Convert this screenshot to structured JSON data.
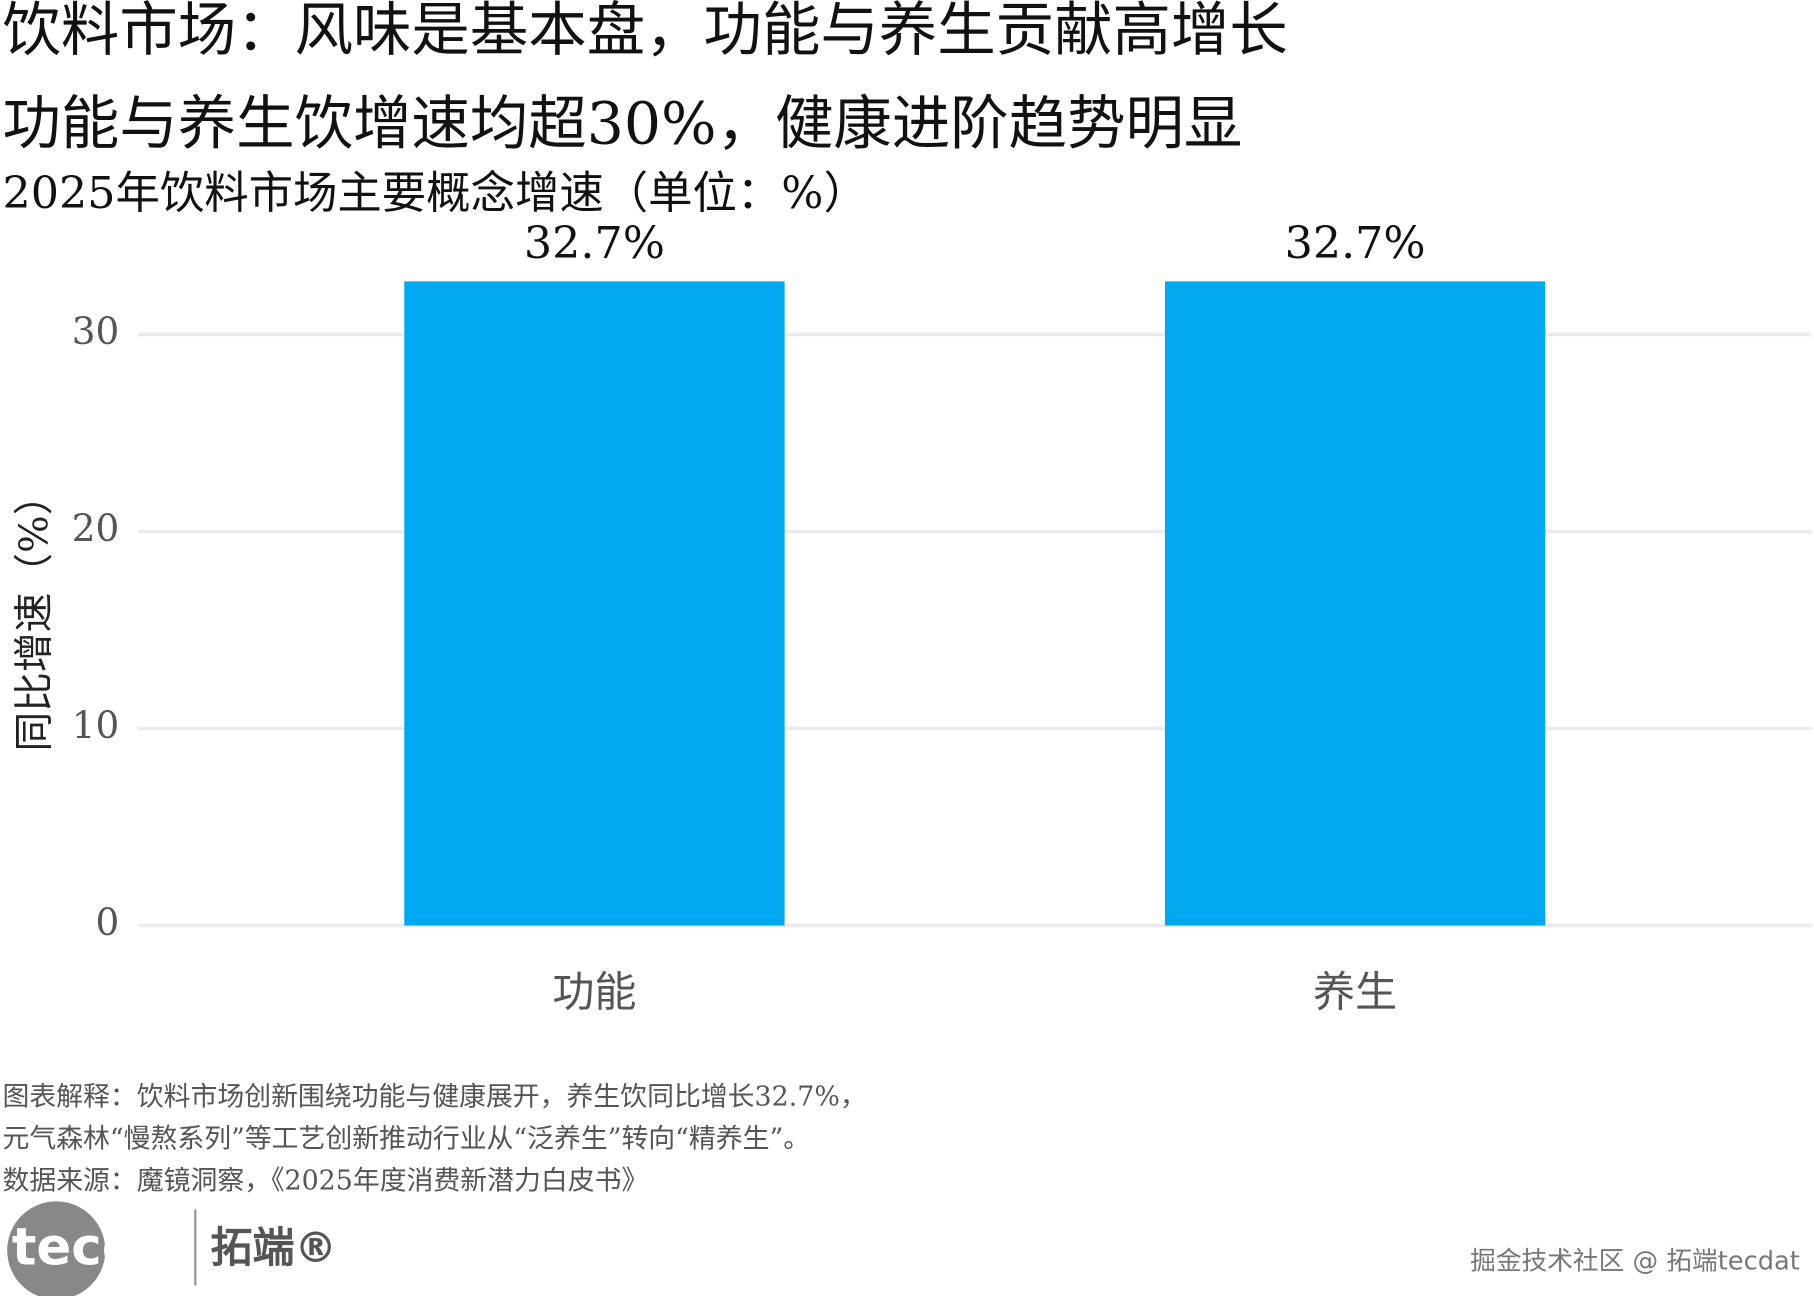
{
  "chart_data": {
    "type": "bar",
    "title": "饮料市场：风味是基本盘，功能与养生贡献高增长",
    "subtitle": "功能与养生饮增速均超30%，健康进阶趋势明显",
    "caption": "2025年饮料市场主要概念增速（单位：%）",
    "y_label": "同比增速（%）",
    "categories": [
      "功能",
      "养生"
    ],
    "values": [
      32.7,
      32.7
    ],
    "value_labels": [
      "32.7%",
      "32.7%"
    ],
    "color": "#00a8f0",
    "ylim": [
      0,
      35
    ],
    "yticks": [
      0,
      10,
      20,
      30
    ],
    "grid": true
  },
  "notes": [
    "图表解释：饮料市场创新围绕功能与健康展开，养生饮同比增长32.7%，",
    "元气森林“慢熬系列”等工艺创新推动行业从“泛养生”转向“精养生”。",
    "数据来源：魔镜洞察，《2025年度消费新潜力白皮书》"
  ],
  "logo": {
    "brand": "tecdat",
    "name": "拓端®"
  },
  "watermark": "掘金技术社区 @ 拓端tecdat"
}
